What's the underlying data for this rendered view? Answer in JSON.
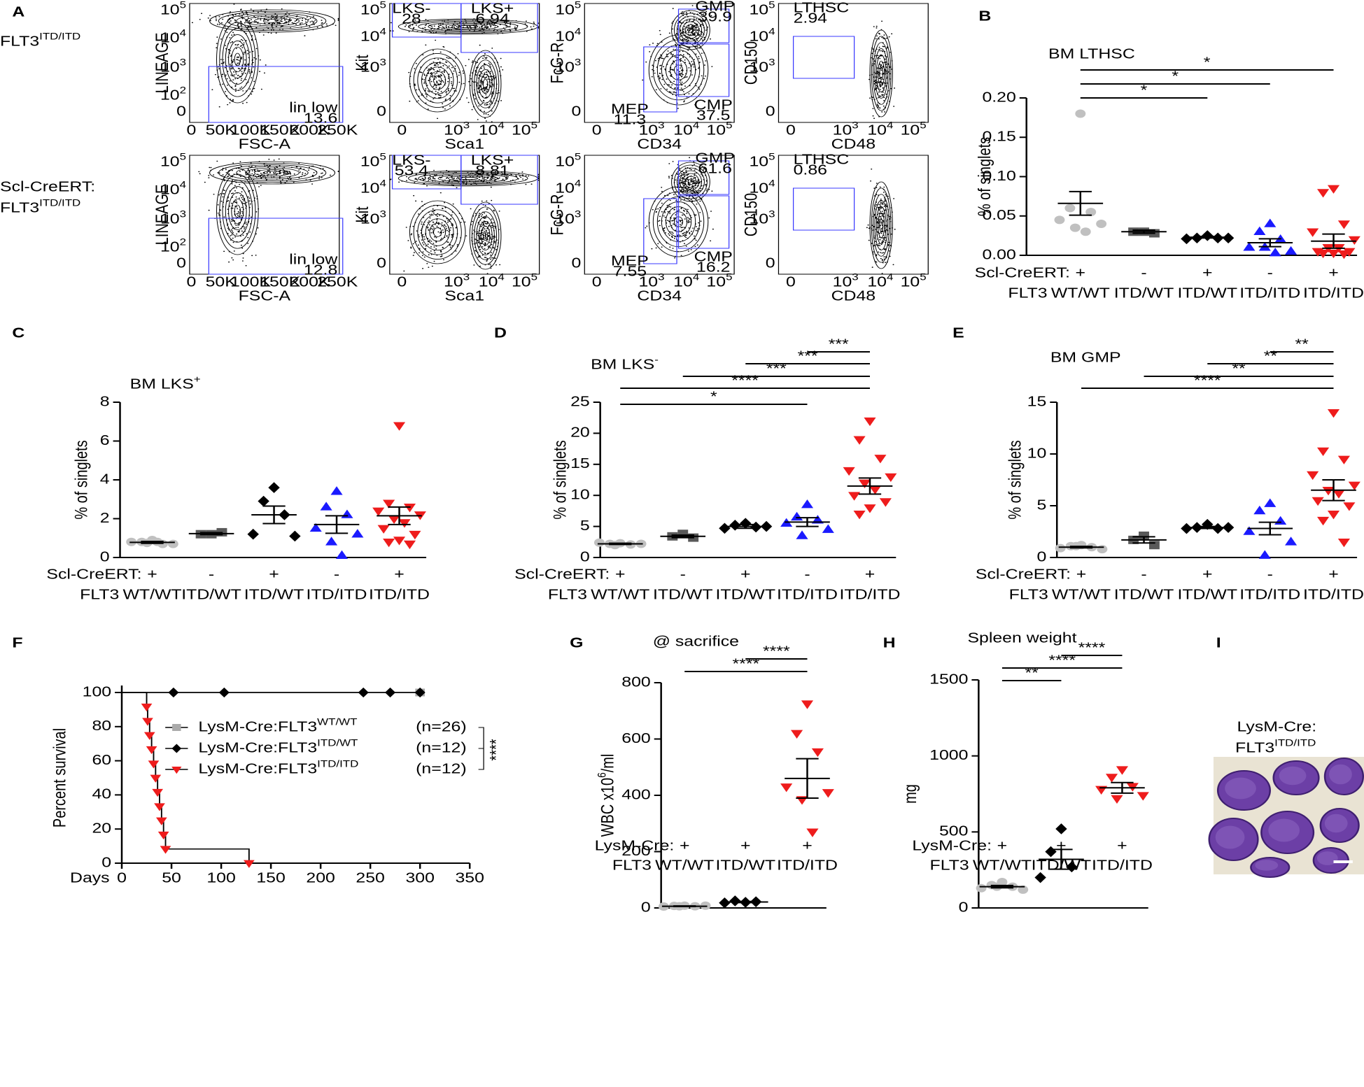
{
  "panel_letters": [
    "A",
    "B",
    "C",
    "D",
    "E",
    "F",
    "G",
    "H",
    "I"
  ],
  "panel_a": {
    "rows": [
      {
        "color": "#1a1aff",
        "label": [
          {
            "text": "FLT3",
            "sup": "ITD/ITD"
          }
        ],
        "values": [
          [
            "13.6"
          ],
          [
            "28",
            "6.94"
          ],
          [
            "39.9",
            "37.5",
            "11.3"
          ],
          [
            "2.94"
          ]
        ]
      },
      {
        "color": "#ee1c1c",
        "label": [
          {
            "text": "Scl-CreERT:"
          },
          {
            "text": "FLT3",
            "sup": "ITD/ITD"
          }
        ],
        "values": [
          [
            "12.8"
          ],
          [
            "53.4",
            "8.81"
          ],
          [
            "61.6",
            "16.2",
            "7.55"
          ],
          [
            "0.86"
          ]
        ]
      }
    ],
    "plots": [
      {
        "xlabel": "FSC-A",
        "ylabel": "LINEAGE",
        "gates": [
          "lin low"
        ],
        "xticks": [
          {
            "base": "0"
          },
          {
            "base": "50K"
          },
          {
            "base": "100K"
          },
          {
            "base": "150K"
          },
          {
            "base": "200K"
          },
          {
            "base": "250K"
          }
        ],
        "yticks": [
          {
            "base": "10",
            "sup": "5"
          },
          {
            "base": "10",
            "sup": "4"
          },
          {
            "base": "10",
            "sup": "3"
          },
          {
            "base": "10",
            "sup": "2"
          },
          {
            "base": "0"
          }
        ]
      },
      {
        "xlabel": "Sca1",
        "ylabel": "Kit",
        "gates": [
          "LKS-",
          "LKS+"
        ],
        "xticks": [
          {
            "base": "0"
          },
          {
            "base": "10",
            "sup": "3"
          },
          {
            "base": "10",
            "sup": "4"
          },
          {
            "base": "10",
            "sup": "5"
          }
        ],
        "yticks": [
          {
            "base": "10",
            "sup": "5"
          },
          {
            "base": "10",
            "sup": "4"
          },
          {
            "base": "10",
            "sup": "3"
          },
          {
            "base": "0"
          }
        ]
      },
      {
        "xlabel": "CD34",
        "ylabel": "FcG-R",
        "gates": [
          "GMP",
          "CMP",
          "MEP"
        ],
        "xticks": [
          {
            "base": "0"
          },
          {
            "base": "10",
            "sup": "3"
          },
          {
            "base": "10",
            "sup": "4"
          },
          {
            "base": "10",
            "sup": "5"
          }
        ],
        "yticks": [
          {
            "base": "10",
            "sup": "5"
          },
          {
            "base": "10",
            "sup": "4"
          },
          {
            "base": "10",
            "sup": "3"
          },
          {
            "base": "0"
          }
        ]
      },
      {
        "xlabel": "CD48",
        "ylabel": "CD150",
        "gates": [
          "LTHSC"
        ],
        "xticks": [
          {
            "base": "0"
          },
          {
            "base": "10",
            "sup": "3"
          },
          {
            "base": "10",
            "sup": "4"
          },
          {
            "base": "10",
            "sup": "5"
          }
        ],
        "yticks": [
          {
            "base": "10",
            "sup": "5"
          },
          {
            "base": "10",
            "sup": "4"
          },
          {
            "base": "10",
            "sup": "3"
          },
          {
            "base": "0"
          }
        ]
      }
    ]
  },
  "panel_i": {
    "line1": "LysM-Cre:",
    "line2": "FLT3",
    "line2_sup": "ITD/ITD"
  },
  "chart_data": [
    {
      "type": "dot",
      "title": "BM LTHSC",
      "ylabel": "% of singlets",
      "ylim": [
        0,
        0.2
      ],
      "yticks": [
        {
          "value": 0,
          "label": "0.00"
        },
        0.05,
        {
          "value": 0.1,
          "label": "0.10"
        },
        0.15,
        {
          "value": 0.2,
          "label": "0.20"
        }
      ],
      "row_labels": [
        "Scl-CreERT:",
        "FLT3"
      ],
      "rows": [
        [
          "+",
          "-",
          "+",
          "-",
          "+"
        ],
        [
          "WT/WT",
          "ITD/WT",
          "ITD/WT",
          "ITD/ITD",
          "ITD/ITD"
        ]
      ],
      "series": [
        {
          "color": "#c0c0c0",
          "marker": "circle",
          "values": [
            0.18,
            0.06,
            0.055,
            0.045,
            0.04,
            0.035,
            0.03
          ],
          "mean": 0.066,
          "sem": 0.015
        },
        {
          "color": "#595959",
          "marker": "square",
          "values": [
            0.03,
            0.03,
            0.028
          ],
          "mean": 0.03,
          "sem": 0.002
        },
        {
          "color": "#000000",
          "marker": "diamond",
          "values": [
            0.025,
            0.022,
            0.022,
            0.021,
            0.022
          ],
          "mean": 0.023,
          "sem": 0.001
        },
        {
          "color": "#1a1aff",
          "marker": "triangle",
          "values": [
            0.04,
            0.03,
            0.02,
            0.01,
            0.005,
            0.01,
            0.003
          ],
          "mean": 0.016,
          "sem": 0.005
        },
        {
          "color": "#ee1c1c",
          "marker": "triangle-down",
          "values": [
            0.085,
            0.08,
            0.04,
            0.03,
            0.02,
            0.01,
            0.01,
            0.005,
            0.005,
            0.003,
            0.003,
            0.002
          ],
          "mean": 0.018,
          "sem": 0.009
        }
      ],
      "comparisons": [
        {
          "groups": [
            0,
            2
          ],
          "label": "*"
        },
        {
          "groups": [
            0,
            3
          ],
          "label": "*"
        },
        {
          "groups": [
            0,
            4
          ],
          "label": "*"
        }
      ]
    },
    {
      "type": "dot",
      "title": "BM LKS",
      "title_sup": "+",
      "ylabel": "% of singlets",
      "ylim": [
        0,
        8
      ],
      "yticks": [
        0,
        2,
        4,
        6,
        8
      ],
      "row_labels": [
        "Scl-CreERT:",
        "FLT3"
      ],
      "rows": [
        [
          "+",
          "-",
          "+",
          "-",
          "+"
        ],
        [
          "WT/WT",
          "ITD/WT",
          "ITD/WT",
          "ITD/ITD",
          "ITD/ITD"
        ]
      ],
      "series": [
        {
          "color": "#c0c0c0",
          "marker": "circle",
          "values": [
            0.9,
            0.8,
            0.7,
            0.8,
            0.7,
            0.75,
            0.8
          ],
          "mean": 0.78,
          "sem": 0.05
        },
        {
          "color": "#595959",
          "marker": "square",
          "values": [
            1.2,
            1.2,
            1.3
          ],
          "mean": 1.23,
          "sem": 0.05
        },
        {
          "color": "#000000",
          "marker": "diamond",
          "values": [
            3.6,
            2.9,
            2.2,
            1.2,
            1.1
          ],
          "mean": 2.2,
          "sem": 0.45
        },
        {
          "color": "#1a1aff",
          "marker": "triangle",
          "values": [
            3.4,
            2.6,
            2.2,
            1.5,
            1.2,
            0.8,
            0.1
          ],
          "mean": 1.7,
          "sem": 0.45
        },
        {
          "color": "#ee1c1c",
          "marker": "triangle-down",
          "values": [
            6.8,
            2.8,
            2.6,
            2.4,
            2.2,
            2,
            1.8,
            1.5,
            1.2,
            0.9,
            0.8,
            0.7
          ],
          "mean": 2.15,
          "sem": 0.45
        }
      ],
      "comparisons": []
    },
    {
      "type": "dot",
      "title": "BM LKS",
      "title_sup": "-",
      "ylabel": "% of singlets",
      "ylim": [
        0,
        25
      ],
      "yticks": [
        0,
        5,
        10,
        15,
        20,
        25
      ],
      "row_labels": [
        "Scl-CreERT:",
        "FLT3"
      ],
      "rows": [
        [
          "+",
          "-",
          "+",
          "-",
          "+"
        ],
        [
          "WT/WT",
          "ITD/WT",
          "ITD/WT",
          "ITD/ITD",
          "ITD/ITD"
        ]
      ],
      "series": [
        {
          "color": "#c0c0c0",
          "marker": "circle",
          "values": [
            2.3,
            2.2,
            2.1,
            2.4,
            2.2,
            2
          ],
          "mean": 2.2,
          "sem": 0.1
        },
        {
          "color": "#595959",
          "marker": "square",
          "values": [
            3.8,
            3.4,
            3.2
          ],
          "mean": 3.4,
          "sem": 0.2
        },
        {
          "color": "#000000",
          "marker": "diamond",
          "values": [
            5.5,
            5.2,
            4.9,
            4.7,
            5
          ],
          "mean": 5,
          "sem": 0.3
        },
        {
          "color": "#1a1aff",
          "marker": "triangle",
          "values": [
            8.5,
            6.5,
            6,
            5.5,
            4.5,
            3.5
          ],
          "mean": 5.7,
          "sem": 0.7
        },
        {
          "color": "#ee1c1c",
          "marker": "triangle-down",
          "values": [
            22,
            19,
            16,
            14,
            13,
            12,
            11,
            10,
            9,
            8,
            7
          ],
          "mean": 11.5,
          "sem": 1.3
        }
      ],
      "comparisons": [
        {
          "groups": [
            0,
            3
          ],
          "label": "*"
        },
        {
          "groups": [
            0,
            4
          ],
          "label": "****"
        },
        {
          "groups": [
            1,
            4
          ],
          "label": "***"
        },
        {
          "groups": [
            2,
            4
          ],
          "label": "***"
        },
        {
          "groups": [
            3,
            4
          ],
          "label": "***"
        }
      ]
    },
    {
      "type": "dot",
      "title": "BM GMP",
      "ylabel": "% of singlets",
      "ylim": [
        0,
        15
      ],
      "yticks": [
        0,
        5,
        10,
        15
      ],
      "row_labels": [
        "Scl-CreERT:",
        "FLT3"
      ],
      "rows": [
        [
          "+",
          "-",
          "+",
          "-",
          "+"
        ],
        [
          "WT/WT",
          "ITD/WT",
          "ITD/WT",
          "ITD/ITD",
          "ITD/ITD"
        ]
      ],
      "series": [
        {
          "color": "#c0c0c0",
          "marker": "circle",
          "values": [
            1.2,
            1.1,
            1,
            0.9,
            0.8,
            1.1
          ],
          "mean": 1,
          "sem": 0.07
        },
        {
          "color": "#595959",
          "marker": "square",
          "values": [
            2.1,
            1.7,
            1.2
          ],
          "mean": 1.7,
          "sem": 0.3
        },
        {
          "color": "#000000",
          "marker": "diamond",
          "values": [
            3.2,
            2.9,
            2.8,
            2.8,
            2.9
          ],
          "mean": 2.9,
          "sem": 0.1
        },
        {
          "color": "#1a1aff",
          "marker": "triangle",
          "values": [
            5.2,
            4.5,
            3.5,
            2.5,
            1.5,
            0.2
          ],
          "mean": 2.8,
          "sem": 0.6
        },
        {
          "color": "#ee1c1c",
          "marker": "triangle-down",
          "values": [
            14,
            10.3,
            9.5,
            8,
            7,
            6.5,
            6.2,
            5.5,
            5,
            4.2,
            3.6,
            1.5
          ],
          "mean": 6.5,
          "sem": 1
        }
      ],
      "comparisons": [
        {
          "groups": [
            0,
            4
          ],
          "label": "****"
        },
        {
          "groups": [
            1,
            4
          ],
          "label": "**"
        },
        {
          "groups": [
            2,
            4
          ],
          "label": "**"
        },
        {
          "groups": [
            3,
            4
          ],
          "label": "**"
        }
      ]
    },
    {
      "type": "survival",
      "xlabel": "Days",
      "ylabel": "Percent survival",
      "xlim": [
        0,
        350
      ],
      "ylim": [
        0,
        100
      ],
      "xticks": [
        0,
        50,
        100,
        150,
        200,
        250,
        300,
        350
      ],
      "yticks": [
        0,
        20,
        40,
        60,
        80,
        100
      ],
      "annotation": "****",
      "series": [
        {
          "name": "LysM-Cre:FLT3",
          "name_sup": "WT/WT",
          "n": "(n=26)",
          "color": "#aaaaaa",
          "marker": "square",
          "x": [
            0,
            300
          ],
          "values": [
            100,
            100
          ]
        },
        {
          "name": "LysM-Cre:FLT3",
          "name_sup": "ITD/WT",
          "n": "(n=12)",
          "color": "#000000",
          "marker": "diamond",
          "x": [
            0,
            52,
            103,
            243,
            270,
            300
          ],
          "values": [
            100,
            100,
            100,
            100,
            100,
            100
          ]
        },
        {
          "name": "LysM-Cre:FLT3",
          "name_sup": "ITD/ITD",
          "n": "(n=12)",
          "color": "#ee1c1c",
          "marker": "triangle-down",
          "x": [
            0,
            25,
            26,
            28,
            30,
            32,
            34,
            36,
            38,
            40,
            42,
            44,
            128
          ],
          "values": [
            100,
            91.7,
            83.3,
            75,
            66.7,
            58.3,
            50,
            41.7,
            33.3,
            25,
            16.7,
            8.3,
            0
          ]
        }
      ]
    },
    {
      "type": "dot",
      "title": "@ sacrifice",
      "ylabel": "WBC x10",
      "ylabel_sup": "6",
      "ylabel_post": "/ml",
      "ylim": [
        0,
        800
      ],
      "yticks": [
        0,
        200,
        400,
        600,
        800
      ],
      "row_labels": [
        "LysM-Cre:",
        "FLT3"
      ],
      "rows": [
        [
          "+",
          "+",
          "+"
        ],
        [
          "WT/WT",
          "ITD/WT",
          "ITD/ITD"
        ]
      ],
      "series": [
        {
          "color": "#c0c0c0",
          "marker": "circle",
          "values": [
            8,
            7,
            6,
            5,
            8,
            6
          ],
          "mean": 6,
          "sem": 1
        },
        {
          "color": "#000000",
          "marker": "diamond",
          "values": [
            20,
            25,
            22,
            18
          ],
          "mean": 21,
          "sem": 2
        },
        {
          "color": "#ee1c1c",
          "marker": "triangle-down",
          "values": [
            725,
            620,
            555,
            430,
            410,
            385,
            270
          ],
          "mean": 460,
          "sem": 70
        }
      ],
      "comparisons": [
        {
          "groups": [
            0,
            2
          ],
          "label": "****"
        },
        {
          "groups": [
            1,
            2
          ],
          "label": "****"
        }
      ]
    },
    {
      "type": "dot",
      "title": "Spleen weight",
      "ylabel": "mg",
      "ylim": [
        0,
        1500
      ],
      "yticks": [
        0,
        500,
        1000,
        1500
      ],
      "row_labels": [
        "LysM-Cre:",
        "FLT3"
      ],
      "rows": [
        [
          "+",
          "+",
          "+"
        ],
        [
          "WT/WT",
          "ITD/WT",
          "ITD/ITD"
        ]
      ],
      "series": [
        {
          "color": "#c0c0c0",
          "marker": "circle",
          "values": [
            170,
            150,
            140,
            130,
            120,
            140
          ],
          "mean": 140,
          "sem": 8
        },
        {
          "color": "#000000",
          "marker": "diamond",
          "values": [
            520,
            370,
            270,
            200
          ],
          "mean": 320,
          "sem": 65
        },
        {
          "color": "#ee1c1c",
          "marker": "triangle-down",
          "values": [
            910,
            860,
            800,
            780,
            740,
            720
          ],
          "mean": 790,
          "sem": 35
        }
      ],
      "comparisons": [
        {
          "groups": [
            0,
            1
          ],
          "label": "**"
        },
        {
          "groups": [
            0,
            2
          ],
          "label": "****"
        },
        {
          "groups": [
            1,
            2
          ],
          "label": "****"
        }
      ]
    }
  ]
}
